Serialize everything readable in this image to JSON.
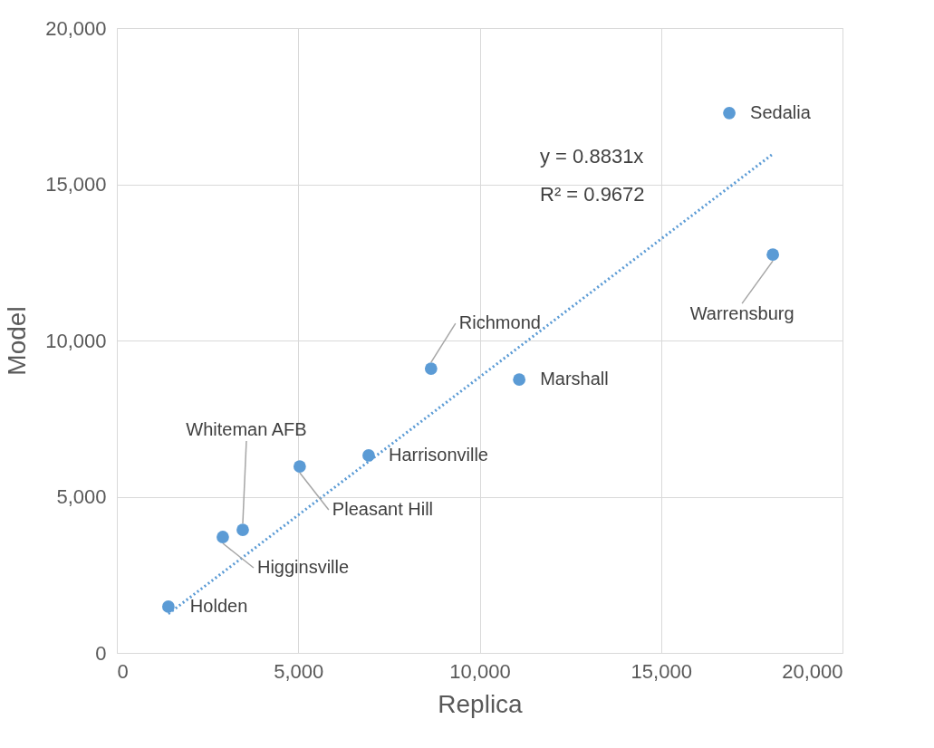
{
  "chart_data": {
    "type": "scatter",
    "xlabel": "Replica",
    "ylabel": "Model",
    "xlim": [
      0,
      20000
    ],
    "ylim": [
      0,
      20000
    ],
    "xticks": [
      0,
      {
        "value": 5000,
        "label": "5,000"
      },
      {
        "value": 10000,
        "label": "10,000"
      },
      {
        "value": 15000,
        "label": "15,000"
      },
      {
        "value": 20000,
        "label": "20,000"
      }
    ],
    "yticks": [
      0,
      {
        "value": 5000,
        "label": "5,000"
      },
      {
        "value": 10000,
        "label": "10,000"
      },
      {
        "value": 15000,
        "label": "15,000"
      },
      {
        "value": 20000,
        "label": "20,000"
      }
    ],
    "grid": true,
    "marker": "circle",
    "series": [
      {
        "color": "#5b9bd5",
        "x": [
          1420,
          2920,
          3470,
          5040,
          6940,
          8660,
          11090,
          16880,
          18080
        ],
        "values": [
          1480,
          3710,
          3940,
          5970,
          6320,
          9100,
          8750,
          17280,
          12750
        ]
      },
      {
        "type": "line",
        "marker": "none",
        "color": "#5b9bd5",
        "line_style": "dotted",
        "x": [
          1420,
          18080
        ],
        "values": [
          1250,
          15970
        ]
      }
    ],
    "annotations": [
      {
        "text": "Holden",
        "x": 1420,
        "y": 1480
      },
      {
        "text": "Higginsville",
        "x": 2920,
        "y": 3710
      },
      {
        "text": "Whiteman AFB",
        "x": 3470,
        "y": 3940
      },
      {
        "text": "Pleasant Hill",
        "x": 5040,
        "y": 5970
      },
      {
        "text": "Harrisonville",
        "x": 6940,
        "y": 6320
      },
      {
        "text": "Richmond",
        "x": 8660,
        "y": 9100
      },
      {
        "text": "Marshall",
        "x": 11090,
        "y": 8750
      },
      {
        "text": "Sedalia",
        "x": 16880,
        "y": 17280
      },
      {
        "text": "Warrensburg",
        "x": 18080,
        "y": 12750
      },
      "y = 0.8831x",
      "R² = 0.9672"
    ]
  }
}
